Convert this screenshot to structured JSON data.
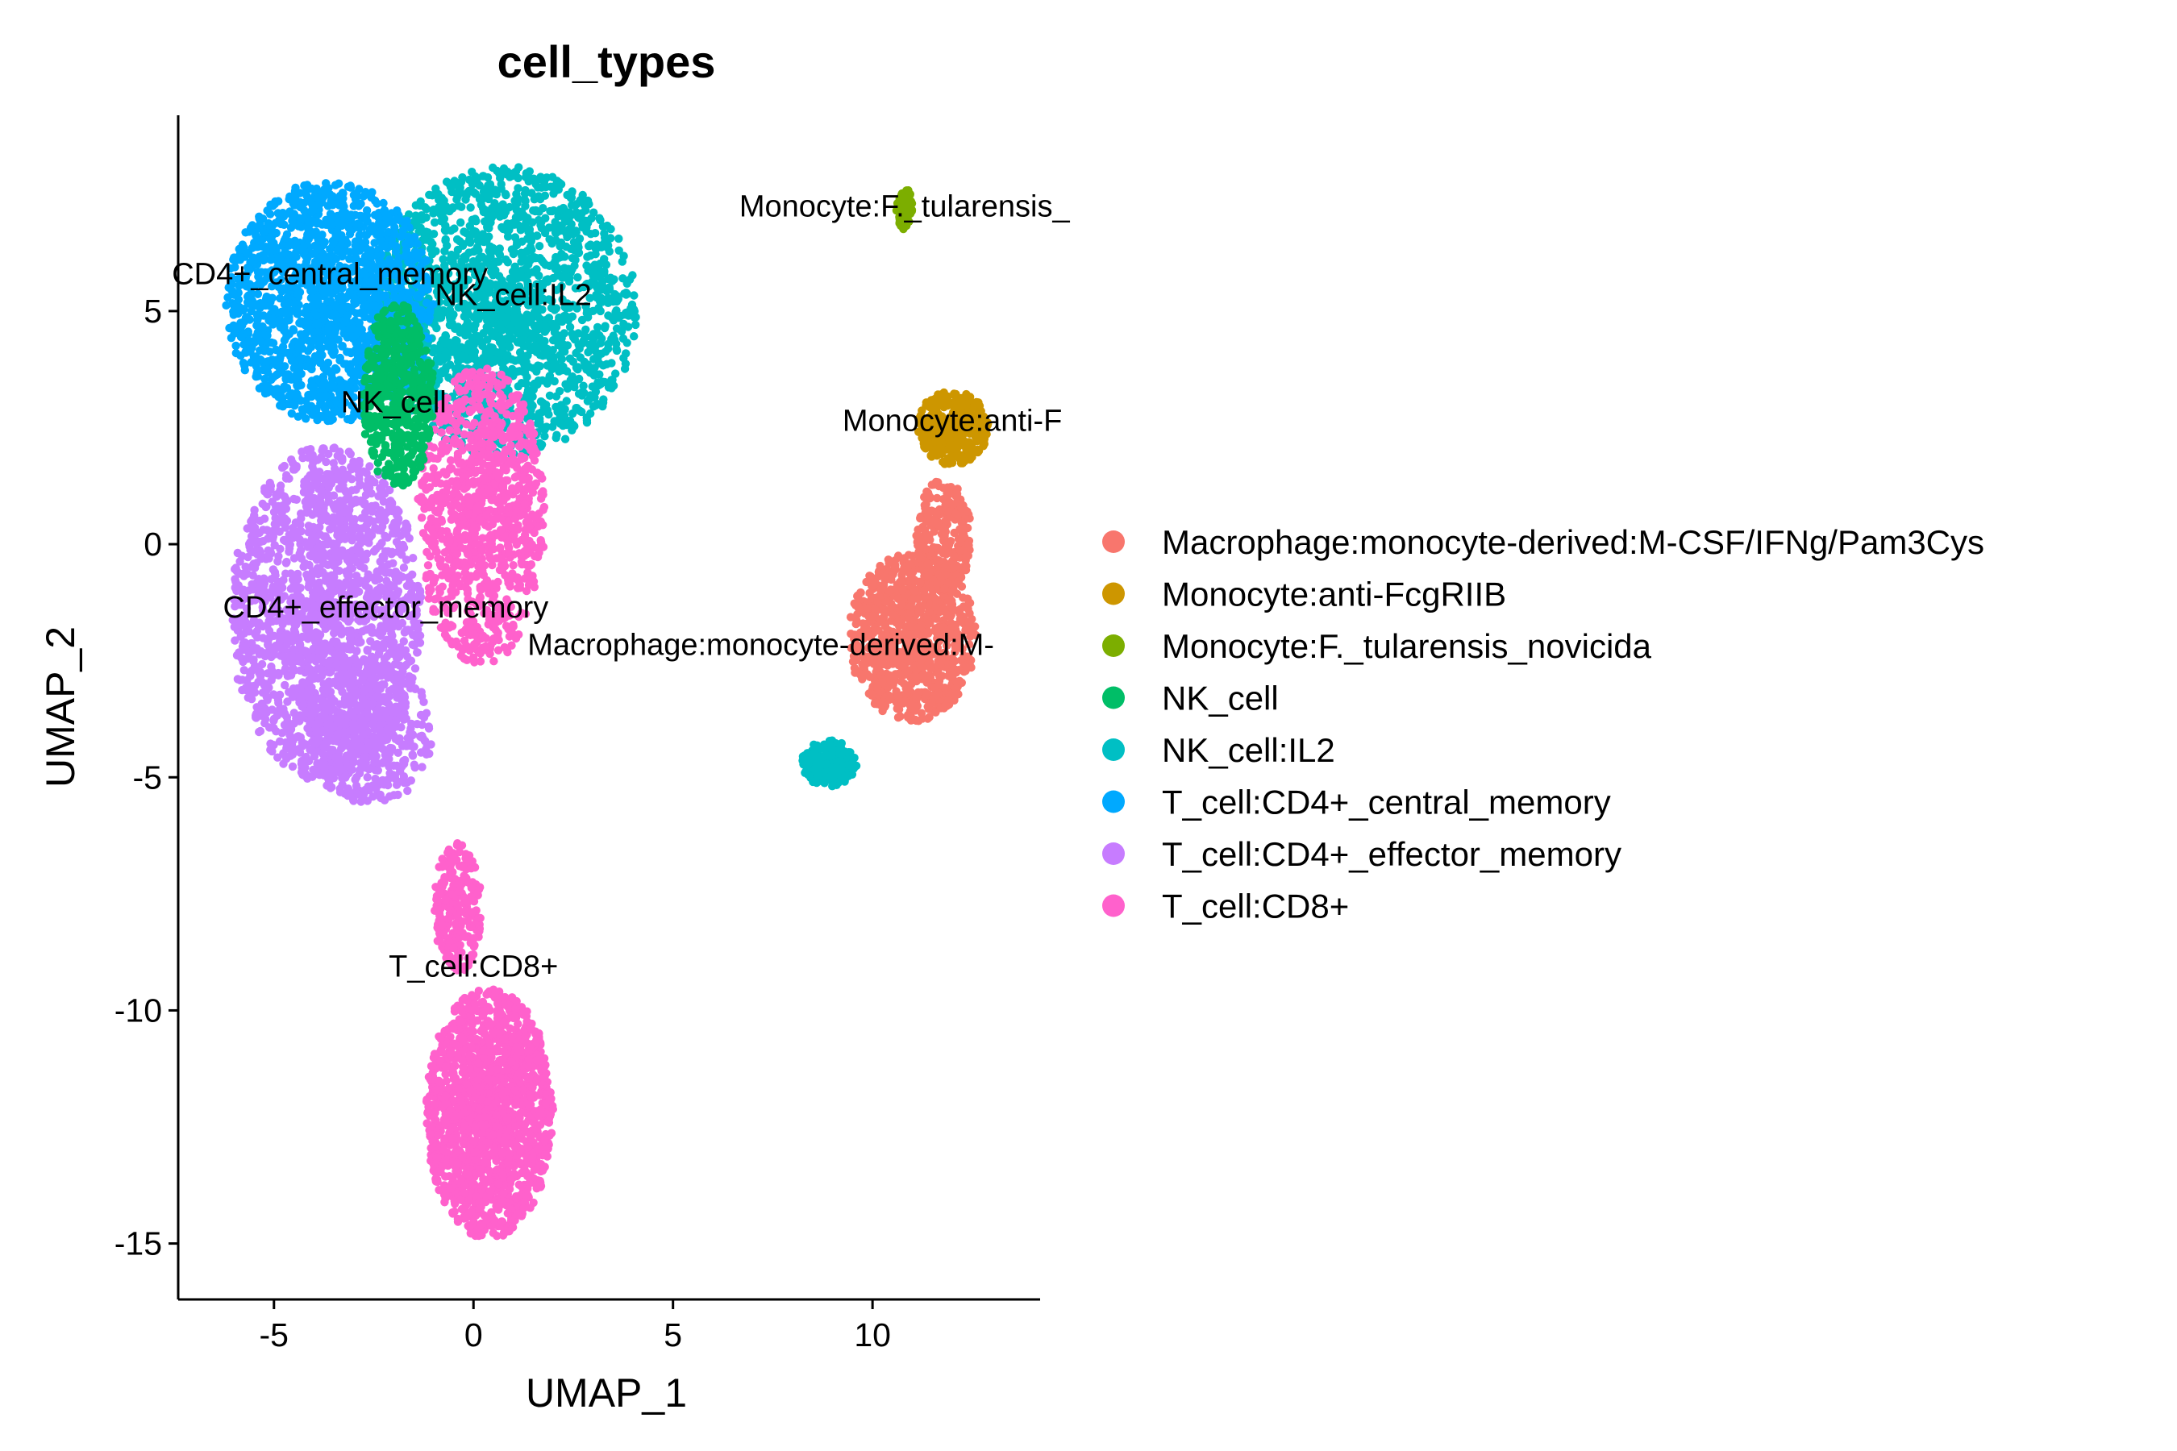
{
  "chart_data": {
    "type": "scatter",
    "title": "cell_types",
    "xlabel": "UMAP_1",
    "ylabel": "UMAP_2",
    "xlim": [
      -7.4,
      14.2
    ],
    "ylim": [
      -16.2,
      9.2
    ],
    "xticks": [
      -5,
      0,
      5,
      10
    ],
    "yticks": [
      -15,
      -10,
      -5,
      0,
      5
    ],
    "xtick_labels": [
      "-5",
      "0",
      "5",
      "10"
    ],
    "ytick_labels": [
      "-15",
      "-10",
      "-5",
      "0",
      "5"
    ],
    "grid": false,
    "legend_position": "right",
    "series": [
      {
        "name": "Macrophage:monocyte-derived:M-CSF/IFNg/Pam3Cys",
        "color": "#F8766D"
      },
      {
        "name": "Monocyte:anti-FcgRIIB",
        "color": "#CD9600"
      },
      {
        "name": "Monocyte:F._tularensis_novicida",
        "color": "#7CAE00"
      },
      {
        "name": "NK_cell",
        "color": "#00BE67"
      },
      {
        "name": "NK_cell:IL2",
        "color": "#00BFC4"
      },
      {
        "name": "T_cell:CD4+_central_memory",
        "color": "#00A9FF"
      },
      {
        "name": "T_cell:CD4+_effector_memory",
        "color": "#C77CFF"
      },
      {
        "name": "T_cell:CD8+",
        "color": "#FF61CC"
      }
    ],
    "clusters": [
      {
        "series": 4,
        "cx": 0.8,
        "cy": 5.0,
        "rx": 3.3,
        "ry": 3.1,
        "n": 1800
      },
      {
        "series": 5,
        "cx": -3.6,
        "cy": 5.2,
        "rx": 2.6,
        "ry": 2.6,
        "n": 1600
      },
      {
        "series": 6,
        "cx": -3.7,
        "cy": -1.5,
        "rx": 2.4,
        "ry": 3.6,
        "n": 1800
      },
      {
        "series": 6,
        "cx": -2.6,
        "cy": -4.0,
        "rx": 1.6,
        "ry": 1.6,
        "n": 400
      },
      {
        "series": 7,
        "cx": 0.2,
        "cy": 0.6,
        "rx": 1.6,
        "ry": 3.2,
        "n": 1000
      },
      {
        "series": 7,
        "cx": 0.4,
        "cy": -12.2,
        "rx": 1.6,
        "ry": 2.7,
        "n": 1500
      },
      {
        "series": 7,
        "cx": -0.4,
        "cy": -7.8,
        "rx": 0.6,
        "ry": 1.4,
        "n": 250
      },
      {
        "series": 3,
        "cx": -1.9,
        "cy": 3.2,
        "rx": 0.9,
        "ry": 2.0,
        "n": 500
      },
      {
        "series": 0,
        "cx": 11.0,
        "cy": -2.0,
        "rx": 1.6,
        "ry": 1.8,
        "n": 900
      },
      {
        "series": 0,
        "cx": 11.8,
        "cy": 0.2,
        "rx": 0.7,
        "ry": 1.2,
        "n": 250
      },
      {
        "series": 4,
        "cx": 8.9,
        "cy": -4.7,
        "rx": 0.7,
        "ry": 0.5,
        "n": 180
      },
      {
        "series": 1,
        "cx": 12.0,
        "cy": 2.5,
        "rx": 0.9,
        "ry": 0.8,
        "n": 350
      },
      {
        "series": 2,
        "cx": 10.8,
        "cy": 7.2,
        "rx": 0.2,
        "ry": 0.45,
        "n": 90
      }
    ],
    "cluster_labels": [
      {
        "text": "Monocyte:F._tularensis_",
        "x": 10.8,
        "y": 7.2
      },
      {
        "text": "CD4+_central_memory",
        "x": -3.6,
        "y": 5.75
      },
      {
        "text": "NK_cell:IL2",
        "x": 1.0,
        "y": 5.3
      },
      {
        "text": "Monocyte:anti-F",
        "x": 12.0,
        "y": 2.6
      },
      {
        "text": "NK_cell",
        "x": -2.0,
        "y": 3.0
      },
      {
        "text": "CD4+_effector_memory",
        "x": -2.2,
        "y": -1.4
      },
      {
        "text": "Macrophage:monocyte-derived:M-",
        "x": 7.2,
        "y": -2.2
      },
      {
        "text": "T_cell:CD8+",
        "x": 0.0,
        "y": -9.1
      }
    ]
  }
}
